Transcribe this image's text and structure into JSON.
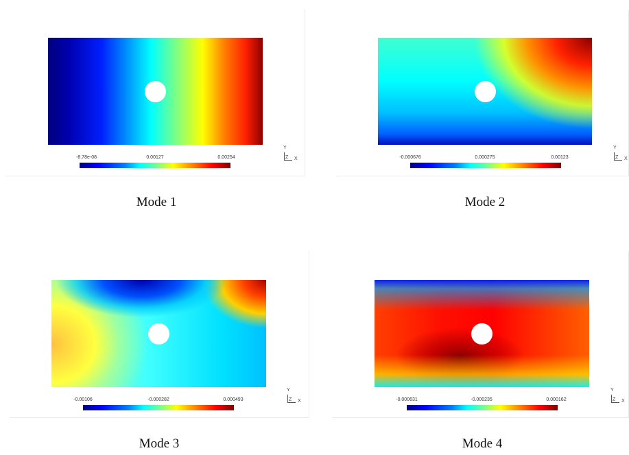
{
  "modes": [
    {
      "caption": "Mode 1",
      "ticks": [
        "-8.78e-08",
        "0.00127",
        "0.00254"
      ]
    },
    {
      "caption": "Mode 2",
      "ticks": [
        "-0.000676",
        "0.000275",
        "0.00123"
      ]
    },
    {
      "caption": "Mode 3",
      "ticks": [
        "-0.00106",
        "-0.000282",
        "0.000493"
      ]
    },
    {
      "caption": "Mode 4",
      "ticks": [
        "-0.000631",
        "-0.000235",
        "0.000162"
      ]
    }
  ],
  "axes": {
    "y": "Y",
    "z": "Z",
    "x": "X"
  },
  "colormap": "jet",
  "colors": {
    "background": "#ffffff",
    "hole": "#ffffff"
  }
}
